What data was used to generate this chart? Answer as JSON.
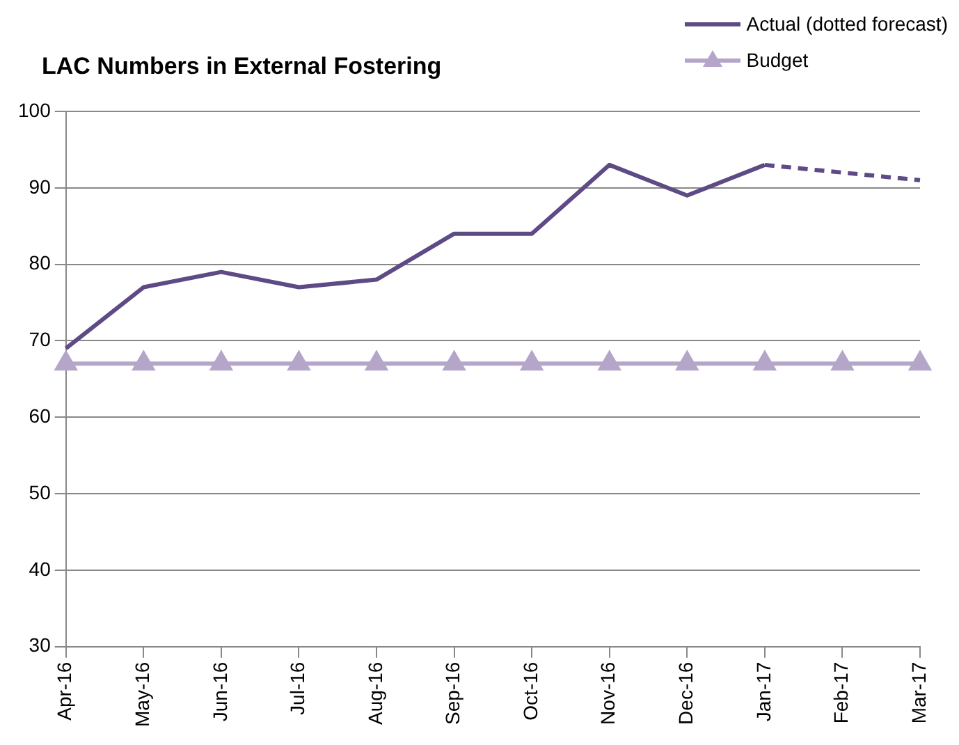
{
  "chart_data": {
    "type": "line",
    "title": "LAC Numbers in External Fostering",
    "categories": [
      "Apr-16",
      "May-16",
      "Jun-16",
      "Jul-16",
      "Aug-16",
      "Sep-16",
      "Oct-16",
      "Nov-16",
      "Dec-16",
      "Jan-17",
      "Feb-17",
      "Mar-17"
    ],
    "series": [
      {
        "name": "Actual (dotted forecast)",
        "color": "#5e4a85",
        "marker": "none",
        "line_style": "solid",
        "values": [
          69,
          77,
          79,
          77,
          78,
          84,
          84,
          93,
          89,
          93,
          null,
          null
        ]
      },
      {
        "color": "#5e4a85",
        "marker": "none",
        "line_style": "dashed",
        "values": [
          null,
          null,
          null,
          null,
          null,
          null,
          null,
          null,
          null,
          93,
          92,
          91
        ]
      },
      {
        "name": "Budget",
        "color": "#b5a6c9",
        "marker": "triangle",
        "line_style": "solid",
        "values": [
          67,
          67,
          67,
          67,
          67,
          67,
          67,
          67,
          67,
          67,
          67,
          67
        ]
      }
    ],
    "ylim": [
      30,
      100
    ],
    "yticks": [
      30,
      40,
      50,
      60,
      70,
      80,
      90,
      100
    ],
    "grid": "y",
    "legend": "top right"
  }
}
